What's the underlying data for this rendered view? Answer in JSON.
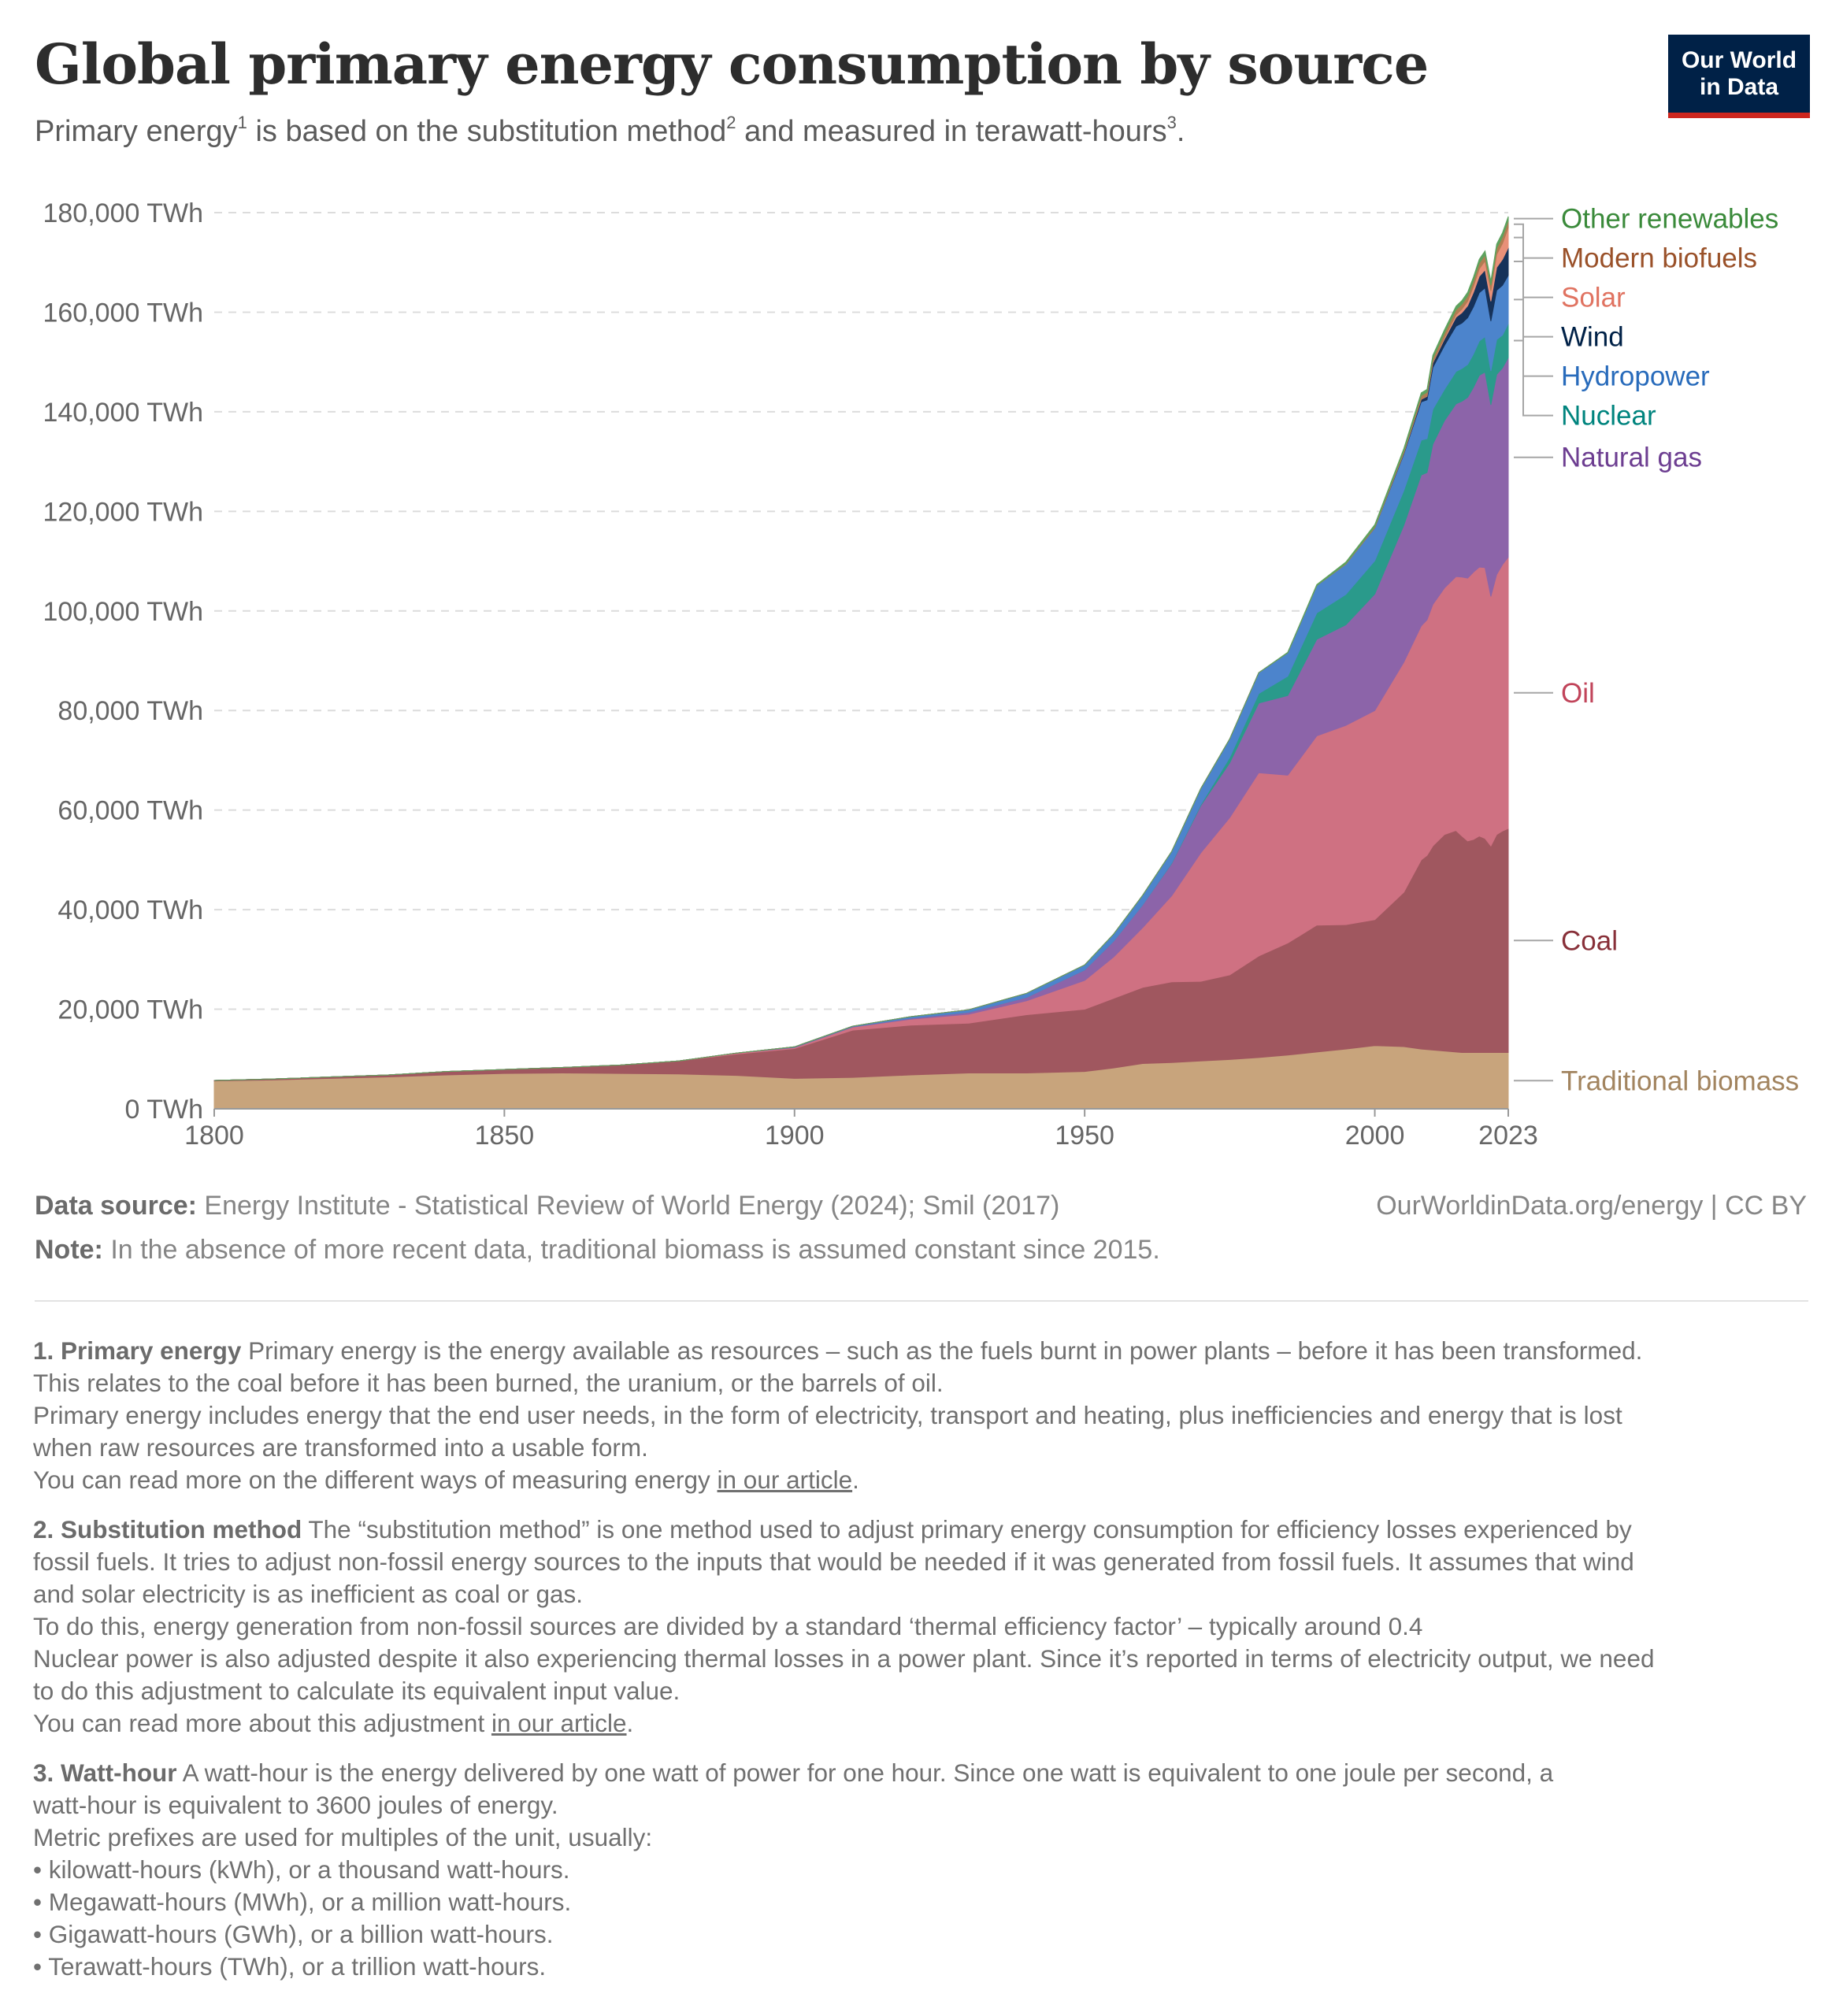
{
  "title": "Global primary energy consumption by source",
  "subtitle": {
    "part1": "Primary energy",
    "sup1": "1",
    "part2": " is based on the substitution method",
    "sup2": "2",
    "part3": " and measured in terawatt-hours",
    "sup3": "3",
    "part4": "."
  },
  "logo": {
    "line1": "Our World",
    "line2": "in Data"
  },
  "chart_data": {
    "type": "area",
    "stacked": true,
    "unit": "TWh",
    "y_ticks": [
      "0 TWh",
      "20,000 TWh",
      "40,000 TWh",
      "60,000 TWh",
      "80,000 TWh",
      "100,000 TWh",
      "120,000 TWh",
      "140,000 TWh",
      "160,000 TWh",
      "180,000 TWh"
    ],
    "y_tick_values": [
      0,
      20000,
      40000,
      60000,
      80000,
      100000,
      120000,
      140000,
      160000,
      180000
    ],
    "x_ticks": [
      "1800",
      "1850",
      "1900",
      "1950",
      "2000",
      "2023"
    ],
    "x_tick_values": [
      1800,
      1850,
      1900,
      1950,
      2000,
      2023
    ],
    "xlim": [
      1800,
      2023
    ],
    "ylim": [
      0,
      180000
    ],
    "grid": "horizontal dashed",
    "legend_placement": "right (inline labels)",
    "x": [
      1800,
      1810,
      1820,
      1830,
      1840,
      1850,
      1860,
      1870,
      1880,
      1890,
      1900,
      1910,
      1920,
      1930,
      1940,
      1950,
      1955,
      1960,
      1965,
      1970,
      1975,
      1980,
      1985,
      1990,
      1995,
      2000,
      2005,
      2008,
      2009,
      2010,
      2012,
      2014,
      2015,
      2016,
      2017,
      2018,
      2019,
      2020,
      2021,
      2022,
      2023
    ],
    "series": [
      {
        "name": "Traditional biomass",
        "color": "#c8a47c",
        "label_color": "#a2845f",
        "values": [
          5600,
          5800,
          6100,
          6400,
          6800,
          7100,
          7200,
          7100,
          7000,
          6700,
          6100,
          6300,
          6800,
          7200,
          7200,
          7500,
          8200,
          9100,
          9300,
          9600,
          9900,
          10300,
          10800,
          11400,
          12000,
          12700,
          12500,
          12000,
          11900,
          11800,
          11600,
          11400,
          11300,
          11300,
          11300,
          11300,
          11300,
          11300,
          11300,
          11300,
          11300
        ]
      },
      {
        "name": "Coal",
        "color": "#a0575f",
        "label_color": "#883039",
        "values": [
          100,
          200,
          300,
          400,
          700,
          800,
          1100,
          1700,
          2600,
          4300,
          6000,
          9500,
          10000,
          10000,
          11700,
          12500,
          14000,
          15300,
          16200,
          16000,
          17000,
          20400,
          22500,
          25500,
          25000,
          25300,
          31000,
          38000,
          39000,
          41000,
          43500,
          44500,
          43500,
          42500,
          42800,
          43500,
          43000,
          41500,
          43800,
          44500,
          45000
        ]
      },
      {
        "name": "Oil",
        "color": "#cf7182",
        "label_color": "#c1445a",
        "values": [
          0,
          0,
          0,
          0,
          0,
          0,
          0,
          0,
          10,
          200,
          200,
          600,
          1200,
          1800,
          2800,
          5800,
          8300,
          12000,
          17300,
          25800,
          31600,
          36800,
          33700,
          38000,
          40000,
          42000,
          46200,
          47000,
          47300,
          48500,
          49500,
          51000,
          52000,
          52800,
          53700,
          54000,
          54400,
          50100,
          52200,
          53500,
          54500
        ]
      },
      {
        "name": "Natural gas",
        "color": "#8c64a9",
        "label_color": "#6d3e91",
        "values": [
          0,
          0,
          0,
          0,
          0,
          0,
          0,
          0,
          0,
          0,
          100,
          100,
          200,
          400,
          700,
          2100,
          3200,
          4600,
          6500,
          9500,
          11000,
          14000,
          16000,
          19400,
          20200,
          23400,
          27500,
          30300,
          29600,
          32200,
          33600,
          34700,
          35300,
          36300,
          37100,
          38500,
          39300,
          38500,
          40200,
          39500,
          40100
        ]
      },
      {
        "name": "Nuclear",
        "color": "#2a9a8b",
        "label_color": "#00847e",
        "values": [
          0,
          0,
          0,
          0,
          0,
          0,
          0,
          0,
          0,
          0,
          0,
          0,
          0,
          0,
          0,
          0,
          0,
          0,
          100,
          200,
          1100,
          1900,
          3900,
          5300,
          6100,
          6700,
          7000,
          7000,
          6800,
          7000,
          6300,
          6500,
          6600,
          6600,
          6700,
          6900,
          7100,
          6800,
          7000,
          6600,
          6800
        ]
      },
      {
        "name": "Hydropower",
        "color": "#4c84cc",
        "label_color": "#286bbb",
        "values": [
          0,
          0,
          0,
          0,
          0,
          0,
          0,
          0,
          0,
          0,
          50,
          100,
          300,
          500,
          800,
          1000,
          1400,
          1900,
          2300,
          3200,
          3700,
          4200,
          4700,
          5500,
          6100,
          6600,
          7300,
          7700,
          7800,
          8400,
          8800,
          9100,
          9100,
          9400,
          9500,
          9700,
          9800,
          10000,
          9900,
          10000,
          9700
        ]
      },
      {
        "name": "Wind",
        "color": "#16325a",
        "label_color": "#002147",
        "values": [
          0,
          0,
          0,
          0,
          0,
          0,
          0,
          0,
          0,
          0,
          0,
          0,
          0,
          0,
          0,
          0,
          0,
          0,
          0,
          0,
          0,
          0,
          0,
          0,
          0,
          30,
          200,
          500,
          700,
          900,
          1300,
          1800,
          2100,
          2400,
          2900,
          3300,
          3600,
          4000,
          4600,
          5200,
          5600
        ]
      },
      {
        "name": "Solar",
        "color": "#e89078",
        "label_color": "#e07361",
        "values": [
          0,
          0,
          0,
          0,
          0,
          0,
          0,
          0,
          0,
          0,
          0,
          0,
          0,
          0,
          0,
          0,
          0,
          0,
          0,
          0,
          0,
          0,
          0,
          0,
          0,
          0,
          20,
          50,
          80,
          100,
          300,
          500,
          700,
          900,
          1200,
          1500,
          1800,
          2100,
          2600,
          3200,
          4000
        ]
      },
      {
        "name": "Modern biofuels",
        "color": "#b07d52",
        "label_color": "#9a5129",
        "values": [
          0,
          0,
          0,
          0,
          0,
          0,
          0,
          0,
          0,
          0,
          0,
          0,
          0,
          0,
          0,
          0,
          0,
          0,
          0,
          0,
          0,
          0,
          0,
          0,
          100,
          200,
          400,
          700,
          750,
          850,
          900,
          1000,
          1000,
          1050,
          1100,
          1150,
          1200,
          1150,
          1250,
          1300,
          1350
        ]
      },
      {
        "name": "Other renewables",
        "color": "#5ea25e",
        "label_color": "#3a8a3a",
        "values": [
          0,
          0,
          0,
          0,
          0,
          0,
          0,
          0,
          0,
          0,
          0,
          0,
          0,
          0,
          0,
          0,
          0,
          0,
          0,
          0,
          0,
          0,
          100,
          200,
          300,
          400,
          500,
          550,
          570,
          600,
          650,
          700,
          720,
          740,
          760,
          780,
          800,
          820,
          840,
          860,
          880
        ]
      }
    ]
  },
  "source": {
    "label": "Data source:",
    "text": " Energy Institute - Statistical Review of World Energy (2024); Smil (2017)"
  },
  "credit": "OurWorldinData.org/energy | CC BY",
  "note": {
    "label": "Note:",
    "text": " In the absence of more recent data, traditional biomass is assumed constant since 2015."
  },
  "footnotes": {
    "f1": {
      "num": "1. Primary energy",
      "l1": " Primary energy is the energy available as resources – such as the fuels burnt in power plants – before it has been transformed.",
      "l2": "This relates to the coal before it has been burned, the uranium, or the barrels of oil.",
      "l3": "Primary energy includes energy that the end user needs, in the form of electricity, transport and heating, plus inefficiencies and energy that is lost",
      "l4": "when raw resources are transformed into a usable form.",
      "l5": "You can read more on the different ways of measuring energy ",
      "link": "in our article",
      "end": "."
    },
    "f2": {
      "num": "2. Substitution method",
      "l1": " The “substitution method” is one method used to adjust primary energy consumption for efficiency losses experienced by",
      "l2": "fossil fuels. It tries to adjust non-fossil energy sources to the inputs that would be needed if it was generated from fossil fuels. It assumes that wind",
      "l3": "and solar electricity is as inefficient as coal or gas.",
      "l4": "To do this, energy generation from non-fossil sources are divided by a standard ‘thermal efficiency factor’ – typically around 0.4",
      "l5": "Nuclear power is also adjusted despite it also experiencing thermal losses in a power plant. Since it’s reported in terms of electricity output, we need",
      "l6": "to do this adjustment to calculate its equivalent input value.",
      "l7": "You can read more about this adjustment ",
      "link": "in our article",
      "end": "."
    },
    "f3": {
      "num": "3. Watt-hour",
      "l1": " A watt-hour is the energy delivered by one watt of power for one hour. Since one watt is equivalent to one joule per second, a",
      "l2": "watt-hour is equivalent to 3600 joules of energy.",
      "l3": "Metric prefixes are used for multiples of the unit, usually:",
      "b1": "• kilowatt-hours (kWh), or a thousand watt-hours.",
      "b2": "• Megawatt-hours (MWh), or a million watt-hours.",
      "b3": "• Gigawatt-hours (GWh), or a billion watt-hours.",
      "b4": "• Terawatt-hours (TWh), or a trillion watt-hours."
    }
  }
}
